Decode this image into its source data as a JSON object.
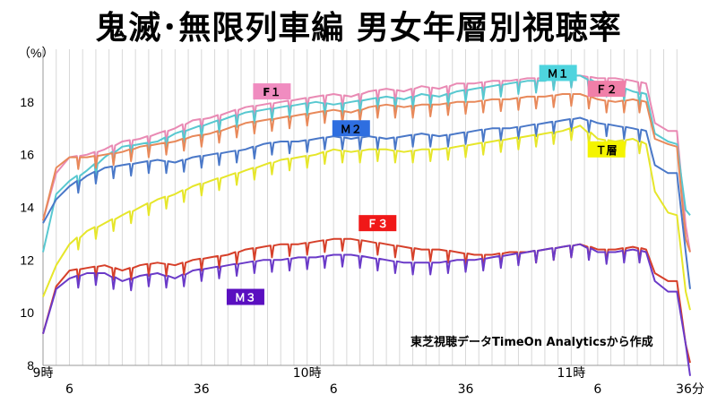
{
  "chart_data": {
    "type": "line",
    "title": "鬼滅･無限列車編 男女年層別視聴率",
    "yunit": "（%）",
    "ylim": [
      8,
      20
    ],
    "yticks": [
      8,
      10,
      12,
      14,
      16,
      18
    ],
    "xlim": [
      0,
      147
    ],
    "xticks": [
      {
        "x": 0,
        "row": 1,
        "label": "9時"
      },
      {
        "x": 6,
        "row": 2,
        "label": "6"
      },
      {
        "x": 36,
        "row": 2,
        "label": "36"
      },
      {
        "x": 60,
        "row": 1,
        "label": "10時"
      },
      {
        "x": 66,
        "row": 2,
        "label": "6"
      },
      {
        "x": 96,
        "row": 2,
        "label": "36"
      },
      {
        "x": 120,
        "row": 1,
        "label": "11時"
      },
      {
        "x": 126,
        "row": 2,
        "label": "6"
      },
      {
        "x": 156,
        "row": 2,
        "label": "36分"
      }
    ],
    "grid": "vertical",
    "source_note": "東芝視聴データTimeOn Analyticsから作成",
    "series": [
      {
        "name": "F１",
        "color": "#e98ab4",
        "label_at": [
          52,
          18.4
        ],
        "label_bg": "#f08cc0",
        "label_fg": "#000000",
        "points": [
          [
            0,
            13.5
          ],
          [
            3,
            15.3
          ],
          [
            6,
            15.9
          ],
          [
            10,
            16.0
          ],
          [
            14,
            16.2
          ],
          [
            18,
            16.5
          ],
          [
            22,
            16.6
          ],
          [
            26,
            16.8
          ],
          [
            30,
            17.0
          ],
          [
            34,
            17.3
          ],
          [
            38,
            17.4
          ],
          [
            42,
            17.6
          ],
          [
            46,
            17.8
          ],
          [
            50,
            17.9
          ],
          [
            54,
            18.0
          ],
          [
            58,
            18.1
          ],
          [
            62,
            18.2
          ],
          [
            66,
            18.3
          ],
          [
            70,
            18.2
          ],
          [
            74,
            18.4
          ],
          [
            78,
            18.5
          ],
          [
            82,
            18.4
          ],
          [
            86,
            18.6
          ],
          [
            90,
            18.5
          ],
          [
            94,
            18.7
          ],
          [
            98,
            18.7
          ],
          [
            102,
            18.8
          ],
          [
            106,
            18.8
          ],
          [
            110,
            18.9
          ],
          [
            114,
            18.9
          ],
          [
            118,
            19.0
          ],
          [
            122,
            19.0
          ],
          [
            126,
            18.9
          ],
          [
            130,
            18.9
          ],
          [
            134,
            18.8
          ],
          [
            137,
            18.7
          ],
          [
            139,
            17.2
          ],
          [
            142,
            16.9
          ],
          [
            144,
            16.9
          ],
          [
            146,
            13.3
          ],
          [
            147,
            12.3
          ]
        ]
      },
      {
        "name": "Ｍ１",
        "color": "#58c8d0",
        "label_at": [
          117,
          19.1
        ],
        "label_bg": "#4ed4de",
        "label_fg": "#000000",
        "points": [
          [
            0,
            12.3
          ],
          [
            3,
            14.5
          ],
          [
            6,
            15.0
          ],
          [
            10,
            15.4
          ],
          [
            14,
            15.9
          ],
          [
            18,
            16.3
          ],
          [
            22,
            16.4
          ],
          [
            26,
            16.5
          ],
          [
            30,
            16.8
          ],
          [
            34,
            17.0
          ],
          [
            38,
            17.2
          ],
          [
            42,
            17.4
          ],
          [
            46,
            17.6
          ],
          [
            50,
            17.7
          ],
          [
            54,
            17.8
          ],
          [
            58,
            17.9
          ],
          [
            62,
            18.0
          ],
          [
            66,
            17.9
          ],
          [
            70,
            18.0
          ],
          [
            74,
            18.1
          ],
          [
            78,
            18.2
          ],
          [
            82,
            18.1
          ],
          [
            86,
            18.3
          ],
          [
            90,
            18.2
          ],
          [
            94,
            18.4
          ],
          [
            98,
            18.5
          ],
          [
            102,
            18.6
          ],
          [
            106,
            18.7
          ],
          [
            110,
            18.8
          ],
          [
            114,
            18.8
          ],
          [
            118,
            19.0
          ],
          [
            122,
            19.0
          ],
          [
            126,
            18.7
          ],
          [
            130,
            18.6
          ],
          [
            134,
            18.4
          ],
          [
            137,
            18.3
          ],
          [
            139,
            16.8
          ],
          [
            142,
            16.5
          ],
          [
            144,
            16.4
          ],
          [
            146,
            13.9
          ],
          [
            147,
            13.7
          ]
        ]
      },
      {
        "name": "Ｆ２",
        "color": "#e8895a",
        "label_at": [
          128,
          18.5
        ],
        "label_bg": "#f07fa8",
        "label_fg": "#000000",
        "points": [
          [
            0,
            13.5
          ],
          [
            3,
            15.5
          ],
          [
            6,
            15.9
          ],
          [
            10,
            15.9
          ],
          [
            14,
            16.0
          ],
          [
            18,
            16.1
          ],
          [
            22,
            16.3
          ],
          [
            26,
            16.4
          ],
          [
            30,
            16.5
          ],
          [
            34,
            16.7
          ],
          [
            38,
            16.8
          ],
          [
            42,
            17.0
          ],
          [
            46,
            17.2
          ],
          [
            50,
            17.3
          ],
          [
            54,
            17.4
          ],
          [
            58,
            17.5
          ],
          [
            62,
            17.6
          ],
          [
            66,
            17.7
          ],
          [
            70,
            17.6
          ],
          [
            74,
            17.8
          ],
          [
            78,
            17.9
          ],
          [
            82,
            17.8
          ],
          [
            86,
            17.9
          ],
          [
            90,
            17.9
          ],
          [
            94,
            18.0
          ],
          [
            98,
            18.0
          ],
          [
            102,
            18.1
          ],
          [
            106,
            18.1
          ],
          [
            110,
            18.2
          ],
          [
            114,
            18.2
          ],
          [
            118,
            18.3
          ],
          [
            122,
            18.3
          ],
          [
            126,
            18.1
          ],
          [
            130,
            18.0
          ],
          [
            134,
            18.1
          ],
          [
            137,
            18.0
          ],
          [
            139,
            16.6
          ],
          [
            142,
            16.4
          ],
          [
            144,
            16.3
          ],
          [
            146,
            12.8
          ],
          [
            147,
            12.3
          ]
        ]
      },
      {
        "name": "Ｍ２",
        "color": "#4a78c8",
        "label_at": [
          70,
          17.0
        ],
        "label_bg": "#2e6ee0",
        "label_fg": "#000000",
        "points": [
          [
            0,
            13.4
          ],
          [
            3,
            14.3
          ],
          [
            6,
            14.8
          ],
          [
            10,
            15.2
          ],
          [
            14,
            15.5
          ],
          [
            18,
            15.6
          ],
          [
            22,
            15.7
          ],
          [
            26,
            15.8
          ],
          [
            30,
            15.7
          ],
          [
            34,
            15.9
          ],
          [
            38,
            16.0
          ],
          [
            42,
            16.1
          ],
          [
            46,
            16.2
          ],
          [
            50,
            16.4
          ],
          [
            54,
            16.5
          ],
          [
            58,
            16.5
          ],
          [
            62,
            16.6
          ],
          [
            66,
            16.7
          ],
          [
            70,
            16.6
          ],
          [
            74,
            16.7
          ],
          [
            78,
            16.6
          ],
          [
            82,
            16.7
          ],
          [
            86,
            16.8
          ],
          [
            90,
            16.7
          ],
          [
            94,
            16.8
          ],
          [
            98,
            16.9
          ],
          [
            102,
            17.0
          ],
          [
            106,
            17.0
          ],
          [
            110,
            17.1
          ],
          [
            114,
            17.2
          ],
          [
            118,
            17.3
          ],
          [
            122,
            17.4
          ],
          [
            126,
            17.2
          ],
          [
            130,
            17.1
          ],
          [
            134,
            17.0
          ],
          [
            137,
            16.9
          ],
          [
            139,
            15.6
          ],
          [
            142,
            15.3
          ],
          [
            144,
            15.3
          ],
          [
            146,
            12.3
          ],
          [
            147,
            10.9
          ]
        ]
      },
      {
        "name": "Ｔ層",
        "color": "#e6e62a",
        "label_at": [
          128,
          16.2
        ],
        "label_bg": "#f4f400",
        "label_fg": "#000000",
        "points": [
          [
            0,
            10.6
          ],
          [
            3,
            11.8
          ],
          [
            6,
            12.6
          ],
          [
            10,
            13.1
          ],
          [
            14,
            13.4
          ],
          [
            18,
            13.7
          ],
          [
            22,
            14.0
          ],
          [
            26,
            14.3
          ],
          [
            30,
            14.5
          ],
          [
            34,
            14.8
          ],
          [
            38,
            15.0
          ],
          [
            42,
            15.2
          ],
          [
            46,
            15.4
          ],
          [
            50,
            15.6
          ],
          [
            54,
            15.8
          ],
          [
            58,
            15.9
          ],
          [
            62,
            16.0
          ],
          [
            66,
            16.2
          ],
          [
            70,
            16.1
          ],
          [
            74,
            16.2
          ],
          [
            78,
            16.2
          ],
          [
            82,
            16.1
          ],
          [
            86,
            16.2
          ],
          [
            90,
            16.2
          ],
          [
            94,
            16.3
          ],
          [
            98,
            16.4
          ],
          [
            102,
            16.5
          ],
          [
            106,
            16.6
          ],
          [
            110,
            16.7
          ],
          [
            114,
            16.8
          ],
          [
            118,
            16.9
          ],
          [
            122,
            17.1
          ],
          [
            126,
            16.6
          ],
          [
            130,
            16.5
          ],
          [
            134,
            16.6
          ],
          [
            137,
            16.4
          ],
          [
            139,
            14.6
          ],
          [
            142,
            13.8
          ],
          [
            144,
            13.7
          ],
          [
            146,
            10.8
          ],
          [
            147,
            10.1
          ]
        ]
      },
      {
        "name": "Ｆ３",
        "color": "#d6402a",
        "label_at": [
          76,
          13.4
        ],
        "label_bg": "#f01818",
        "label_fg": "#ffffff",
        "points": [
          [
            0,
            9.2
          ],
          [
            3,
            11.0
          ],
          [
            6,
            11.6
          ],
          [
            10,
            11.7
          ],
          [
            14,
            11.8
          ],
          [
            18,
            11.6
          ],
          [
            22,
            11.8
          ],
          [
            26,
            11.9
          ],
          [
            30,
            11.8
          ],
          [
            34,
            12.0
          ],
          [
            38,
            12.1
          ],
          [
            42,
            12.2
          ],
          [
            46,
            12.4
          ],
          [
            50,
            12.5
          ],
          [
            54,
            12.6
          ],
          [
            58,
            12.6
          ],
          [
            62,
            12.7
          ],
          [
            66,
            12.8
          ],
          [
            70,
            12.8
          ],
          [
            74,
            12.7
          ],
          [
            78,
            12.6
          ],
          [
            82,
            12.5
          ],
          [
            86,
            12.4
          ],
          [
            90,
            12.4
          ],
          [
            94,
            12.3
          ],
          [
            98,
            12.2
          ],
          [
            102,
            12.2
          ],
          [
            106,
            12.3
          ],
          [
            110,
            12.3
          ],
          [
            114,
            12.4
          ],
          [
            118,
            12.5
          ],
          [
            122,
            12.6
          ],
          [
            126,
            12.4
          ],
          [
            130,
            12.4
          ],
          [
            134,
            12.5
          ],
          [
            137,
            12.4
          ],
          [
            139,
            11.5
          ],
          [
            142,
            11.2
          ],
          [
            144,
            11.2
          ],
          [
            146,
            8.8
          ],
          [
            147,
            8.1
          ]
        ]
      },
      {
        "name": "Ｍ３",
        "color": "#6a3ac8",
        "label_at": [
          46,
          10.6
        ],
        "label_bg": "#5a0fc0",
        "label_fg": "#ffffff",
        "points": [
          [
            0,
            9.2
          ],
          [
            3,
            10.9
          ],
          [
            6,
            11.3
          ],
          [
            10,
            11.5
          ],
          [
            14,
            11.5
          ],
          [
            18,
            11.2
          ],
          [
            22,
            11.4
          ],
          [
            26,
            11.5
          ],
          [
            30,
            11.3
          ],
          [
            34,
            11.6
          ],
          [
            38,
            11.7
          ],
          [
            42,
            11.8
          ],
          [
            46,
            11.9
          ],
          [
            50,
            12.0
          ],
          [
            54,
            12.0
          ],
          [
            58,
            12.1
          ],
          [
            62,
            12.1
          ],
          [
            66,
            12.2
          ],
          [
            70,
            12.2
          ],
          [
            74,
            12.1
          ],
          [
            78,
            12.0
          ],
          [
            82,
            11.9
          ],
          [
            86,
            11.9
          ],
          [
            90,
            11.9
          ],
          [
            94,
            12.0
          ],
          [
            98,
            12.0
          ],
          [
            102,
            12.1
          ],
          [
            106,
            12.2
          ],
          [
            110,
            12.3
          ],
          [
            114,
            12.4
          ],
          [
            118,
            12.5
          ],
          [
            122,
            12.6
          ],
          [
            126,
            12.3
          ],
          [
            130,
            12.3
          ],
          [
            134,
            12.4
          ],
          [
            137,
            12.3
          ],
          [
            139,
            11.2
          ],
          [
            142,
            10.8
          ],
          [
            144,
            10.8
          ],
          [
            146,
            8.8
          ],
          [
            147,
            7.6
          ]
        ]
      }
    ]
  }
}
